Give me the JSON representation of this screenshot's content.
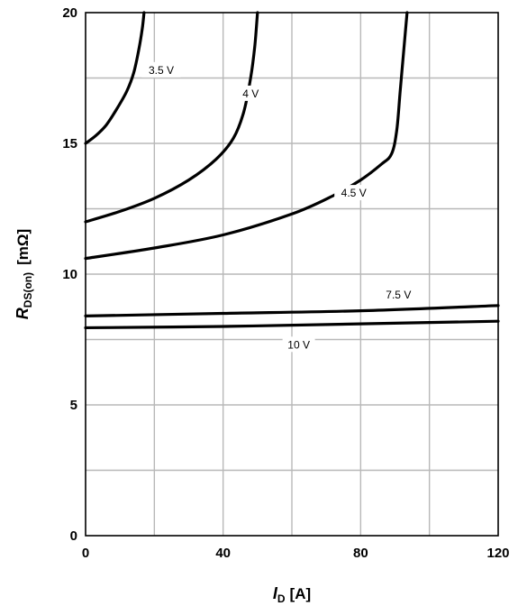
{
  "chart_data": {
    "type": "line",
    "xlabel": {
      "main": "I",
      "sub": "D",
      "unit": "[A]"
    },
    "ylabel": {
      "main": "R",
      "sub": "DS(on)",
      "unit": "[mΩ]"
    },
    "xlim": [
      0,
      120
    ],
    "ylim": [
      0,
      20
    ],
    "x_ticks": [
      {
        "value": 0,
        "label": "0"
      },
      {
        "value": 40,
        "label": "40"
      },
      {
        "value": 80,
        "label": "80"
      },
      {
        "value": 120,
        "label": "120"
      }
    ],
    "y_ticks": [
      {
        "value": 0,
        "label": "0"
      },
      {
        "value": 5,
        "label": "5"
      },
      {
        "value": 10,
        "label": "10"
      },
      {
        "value": 15,
        "label": "15"
      },
      {
        "value": 20,
        "label": "20"
      }
    ],
    "x_grid_step": 20,
    "y_grid_step": 2.5,
    "grid": true,
    "series": [
      {
        "name": "3.5 V",
        "label_at": {
          "x": 22,
          "y": 17.8
        },
        "points": [
          [
            0,
            15.0
          ],
          [
            3,
            15.3
          ],
          [
            6,
            15.7
          ],
          [
            9,
            16.3
          ],
          [
            12,
            17.0
          ],
          [
            14,
            17.7
          ],
          [
            15.5,
            18.6
          ],
          [
            16.5,
            19.4
          ],
          [
            17,
            20.0
          ]
        ]
      },
      {
        "name": "4 V",
        "label_at": {
          "x": 48,
          "y": 16.9
        },
        "points": [
          [
            0,
            12.0
          ],
          [
            10,
            12.4
          ],
          [
            20,
            12.9
          ],
          [
            30,
            13.6
          ],
          [
            38,
            14.4
          ],
          [
            43,
            15.2
          ],
          [
            46,
            16.2
          ],
          [
            48,
            17.5
          ],
          [
            49.2,
            18.7
          ],
          [
            50,
            20.0
          ]
        ]
      },
      {
        "name": "4.5 V",
        "label_at": {
          "x": 78,
          "y": 13.1
        },
        "points": [
          [
            0,
            10.6
          ],
          [
            20,
            11.0
          ],
          [
            40,
            11.5
          ],
          [
            60,
            12.3
          ],
          [
            72,
            13.0
          ],
          [
            80,
            13.6
          ],
          [
            86,
            14.2
          ],
          [
            89,
            14.6
          ],
          [
            90.5,
            15.5
          ],
          [
            91.5,
            17.0
          ],
          [
            92.5,
            18.5
          ],
          [
            93.5,
            20.0
          ]
        ]
      },
      {
        "name": "7.5 V",
        "label_at": {
          "x": 91,
          "y": 9.2
        },
        "points": [
          [
            0,
            8.4
          ],
          [
            40,
            8.5
          ],
          [
            80,
            8.6
          ],
          [
            120,
            8.8
          ]
        ]
      },
      {
        "name": "10 V",
        "label_at": {
          "x": 62,
          "y": 7.3
        },
        "points": [
          [
            0,
            7.95
          ],
          [
            40,
            8.0
          ],
          [
            80,
            8.1
          ],
          [
            120,
            8.2
          ]
        ]
      }
    ]
  }
}
